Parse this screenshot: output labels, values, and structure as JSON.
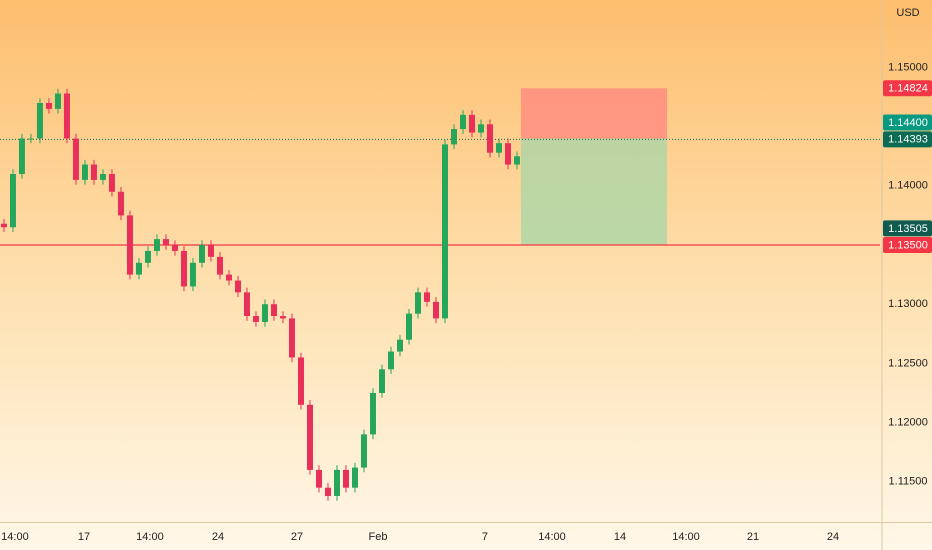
{
  "chart_data": {
    "type": "candlestick",
    "currency": "USD",
    "up_color": "#26a65b",
    "down_color": "#e8305a",
    "x": [
      0,
      1,
      2,
      3,
      4,
      5,
      6,
      7,
      8,
      9,
      10,
      11,
      12,
      13,
      14,
      15,
      16,
      17,
      18,
      19,
      20,
      21,
      22,
      23,
      24,
      25,
      26,
      27,
      28,
      29,
      30,
      31,
      32,
      33,
      34,
      35,
      36,
      37,
      38,
      39,
      40,
      41,
      42,
      43,
      44,
      45,
      46,
      47,
      48,
      49,
      50,
      51,
      52,
      53,
      54,
      55,
      56,
      57
    ],
    "open": [
      1.1368,
      1.1365,
      1.141,
      1.144,
      1.144,
      1.147,
      1.1465,
      1.1478,
      1.144,
      1.1405,
      1.1418,
      1.1405,
      1.141,
      1.1395,
      1.1375,
      1.1325,
      1.1335,
      1.1345,
      1.1355,
      1.135,
      1.1345,
      1.1315,
      1.1335,
      1.135,
      1.134,
      1.1325,
      1.132,
      1.131,
      1.129,
      1.1285,
      1.13,
      1.129,
      1.1288,
      1.1255,
      1.1215,
      1.116,
      1.1145,
      1.1138,
      1.116,
      1.1145,
      1.1162,
      1.119,
      1.1225,
      1.1245,
      1.126,
      1.127,
      1.1292,
      1.131,
      1.1302,
      1.1288,
      1.1435,
      1.1448,
      1.146,
      1.1445,
      1.1452,
      1.1428,
      1.1436,
      1.1418
    ],
    "high": [
      1.1372,
      1.1414,
      1.1444,
      1.1444,
      1.1474,
      1.1474,
      1.1482,
      1.1482,
      1.1444,
      1.1422,
      1.1422,
      1.1414,
      1.1414,
      1.1399,
      1.1379,
      1.1339,
      1.1349,
      1.1359,
      1.1359,
      1.1354,
      1.1349,
      1.1339,
      1.1354,
      1.1354,
      1.1344,
      1.1329,
      1.1324,
      1.1314,
      1.1294,
      1.1304,
      1.1304,
      1.1294,
      1.1292,
      1.1259,
      1.1219,
      1.1164,
      1.1149,
      1.1164,
      1.1164,
      1.1166,
      1.1194,
      1.1229,
      1.1249,
      1.1264,
      1.1274,
      1.1296,
      1.1314,
      1.1314,
      1.1306,
      1.1439,
      1.1452,
      1.1464,
      1.1464,
      1.1456,
      1.1456,
      1.144,
      1.144,
      1.1429
    ],
    "low": [
      1.1361,
      1.1361,
      1.1406,
      1.1436,
      1.1436,
      1.1461,
      1.1461,
      1.1436,
      1.1401,
      1.1401,
      1.1401,
      1.1401,
      1.1391,
      1.1371,
      1.1321,
      1.1321,
      1.1331,
      1.1341,
      1.1346,
      1.1341,
      1.1311,
      1.1311,
      1.1331,
      1.1336,
      1.1321,
      1.1316,
      1.1306,
      1.1286,
      1.1281,
      1.1281,
      1.1286,
      1.1284,
      1.1251,
      1.1211,
      1.1156,
      1.1141,
      1.1134,
      1.1134,
      1.1141,
      1.1141,
      1.1158,
      1.1186,
      1.1221,
      1.1241,
      1.1256,
      1.1266,
      1.1288,
      1.1298,
      1.1284,
      1.1284,
      1.1431,
      1.1444,
      1.1441,
      1.1441,
      1.1424,
      1.1424,
      1.1414,
      1.1414
    ],
    "close": [
      1.1365,
      1.141,
      1.144,
      1.144,
      1.147,
      1.1465,
      1.1478,
      1.144,
      1.1405,
      1.1418,
      1.1405,
      1.141,
      1.1395,
      1.1375,
      1.1325,
      1.1335,
      1.1345,
      1.1355,
      1.135,
      1.1345,
      1.1315,
      1.1335,
      1.135,
      1.134,
      1.1325,
      1.132,
      1.131,
      1.129,
      1.1285,
      1.13,
      1.129,
      1.1288,
      1.1255,
      1.1215,
      1.116,
      1.1145,
      1.1138,
      1.116,
      1.1145,
      1.1162,
      1.119,
      1.1225,
      1.1245,
      1.126,
      1.127,
      1.1292,
      1.131,
      1.1302,
      1.1288,
      1.1435,
      1.1448,
      1.146,
      1.1445,
      1.1452,
      1.1428,
      1.1436,
      1.1418,
      1.1425
    ],
    "xlim": [
      -0.44,
      97.33
    ],
    "xticks": [
      {
        "value": 1.22,
        "label": "14:00"
      },
      {
        "value": 8.89,
        "label": "17"
      },
      {
        "value": 16.22,
        "label": "14:00"
      },
      {
        "value": 23.78,
        "label": "24"
      },
      {
        "value": 32.56,
        "label": "27"
      },
      {
        "value": 41.56,
        "label": "Feb"
      },
      {
        "value": 53.44,
        "label": "7"
      },
      {
        "value": 60.89,
        "label": "14:00"
      },
      {
        "value": 68.44,
        "label": "14"
      },
      {
        "value": 75.78,
        "label": "14:00"
      },
      {
        "value": 83.22,
        "label": "21"
      },
      {
        "value": 92.11,
        "label": "24"
      }
    ],
    "ylim": [
      1.1116,
      1.1557
    ],
    "yticks": [
      {
        "value": 1.15,
        "label": "1.15000"
      },
      {
        "value": 1.14,
        "label": "1.14000"
      },
      {
        "value": 1.13,
        "label": "1.13000"
      },
      {
        "value": 1.125,
        "label": "1.12500"
      },
      {
        "value": 1.12,
        "label": "1.12000"
      },
      {
        "value": 1.115,
        "label": "1.11500"
      }
    ],
    "position": {
      "x_start": 57.44,
      "x_end": 73.67,
      "stop": {
        "value": 1.14824,
        "label": "1.14824",
        "color": "#f23645"
      },
      "entry": {
        "value": 1.144,
        "label": "1.14400",
        "color": "#089981"
      },
      "target": {
        "value": 1.13505,
        "label": "1.13505",
        "color": "#0f5c4f"
      },
      "stop_zone_color": "#ff8a80",
      "target_zone_color": "#a5d6a7"
    },
    "last_price": {
      "value": 1.14393,
      "label": "1.14393",
      "color": "#0b6b53"
    },
    "alert_line": {
      "value": 1.135,
      "label": "1.13500",
      "color": "#f23645"
    }
  }
}
